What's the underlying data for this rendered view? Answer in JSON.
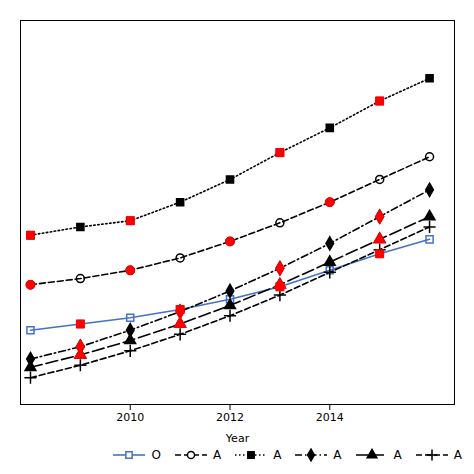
{
  "chart_data": {
    "type": "line",
    "xlabel": "Year",
    "x": [
      2008,
      2009,
      2010,
      2011,
      2012,
      2013,
      2014,
      2015,
      2016
    ],
    "xlim": [
      2007.8,
      2016.5
    ],
    "xticks": [
      2010,
      2012,
      2014
    ],
    "ylim": [
      -0.8,
      8.5
    ],
    "tick_labels": "x",
    "legend": "lower right",
    "series": [
      {
        "name": "O",
        "color": "#4472C4",
        "line_style": "solid",
        "marker": "square-open",
        "values": [
          1.0,
          1.15,
          1.3,
          1.5,
          1.75,
          2.05,
          2.45,
          2.85,
          3.2
        ]
      },
      {
        "type": "scatter",
        "color": "red",
        "marker": "square",
        "x": [
          2009,
          2011,
          2013,
          2015
        ],
        "values": [
          1.15,
          1.5,
          2.05,
          2.85
        ]
      },
      {
        "name": "A",
        "color": "black",
        "line_style": "dashed",
        "marker": "circle-open",
        "values": [
          2.1,
          2.25,
          2.45,
          2.75,
          3.15,
          3.6,
          4.1,
          4.65,
          5.2
        ]
      },
      {
        "type": "scatter",
        "color": "red",
        "marker": "circle",
        "x": [
          2008,
          2010,
          2012,
          2014
        ],
        "values": [
          2.1,
          2.45,
          3.15,
          4.1
        ]
      },
      {
        "name": "A",
        "color": "black",
        "line_style": "dotted",
        "marker": "square",
        "values": [
          3.3,
          3.5,
          3.65,
          4.1,
          4.65,
          5.3,
          5.9,
          6.55,
          7.1
        ]
      },
      {
        "type": "scatter",
        "color": "red",
        "marker": "square",
        "x": [
          2008,
          2010,
          2013,
          2015
        ],
        "values": [
          3.3,
          3.65,
          5.3,
          6.55
        ]
      },
      {
        "name": "A",
        "color": "black",
        "line_style": "dashdot",
        "marker": "diamond",
        "values": [
          0.3,
          0.6,
          1.0,
          1.45,
          1.95,
          2.5,
          3.1,
          3.75,
          4.4
        ]
      },
      {
        "type": "scatter",
        "color": "red",
        "marker": "diamond",
        "x": [
          2009,
          2011,
          2013,
          2015
        ],
        "values": [
          0.6,
          1.45,
          2.5,
          3.75
        ]
      },
      {
        "name": "A",
        "color": "black",
        "line_style": "longdash",
        "marker": "triangle",
        "values": [
          0.1,
          0.4,
          0.75,
          1.15,
          1.6,
          2.1,
          2.65,
          3.2,
          3.75
        ]
      },
      {
        "type": "scatter",
        "color": "red",
        "marker": "triangle",
        "x": [
          2009,
          2011,
          2013,
          2015
        ],
        "values": [
          0.4,
          1.15,
          2.1,
          3.2
        ]
      },
      {
        "name": "A",
        "color": "black",
        "line_style": "dashed",
        "marker": "plus",
        "values": [
          -0.15,
          0.15,
          0.5,
          0.9,
          1.35,
          1.85,
          2.4,
          2.95,
          3.5
        ]
      }
    ]
  }
}
